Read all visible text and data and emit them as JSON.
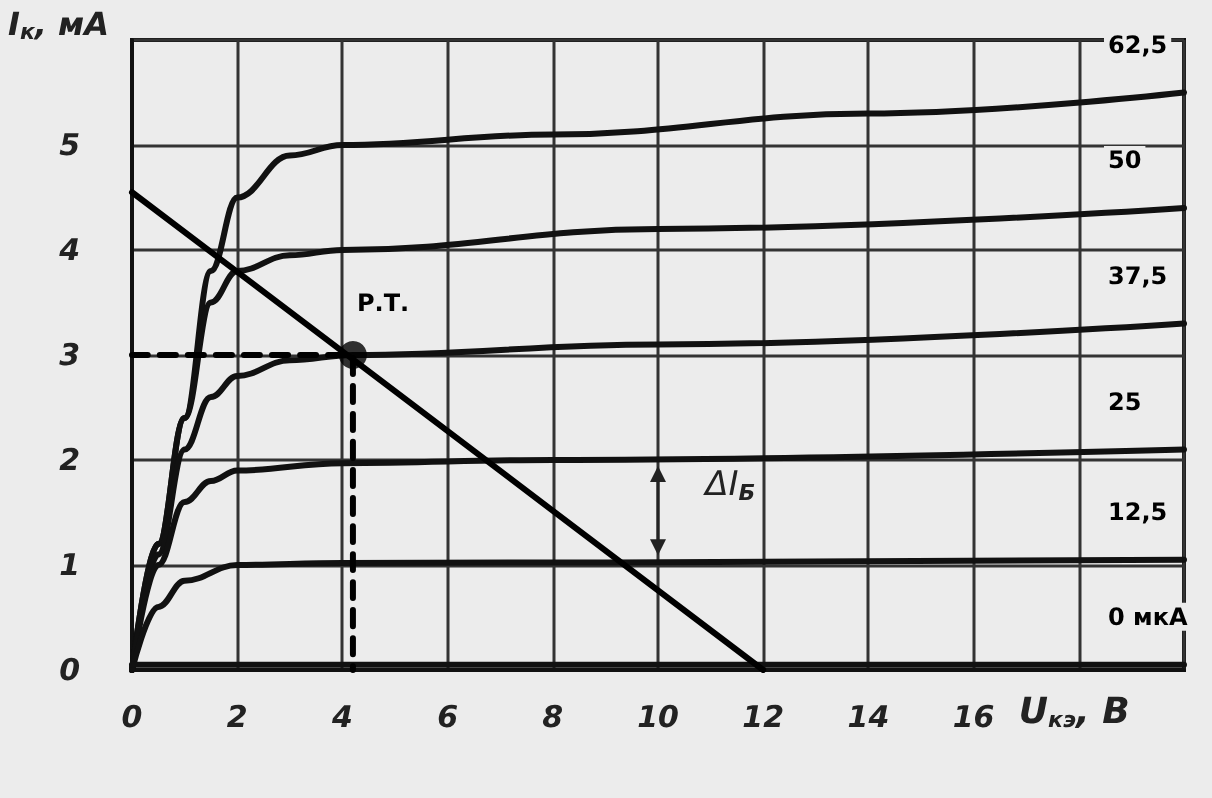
{
  "chart_data": {
    "type": "line",
    "xlabel": "U$_{кэ}$, В",
    "ylabel": "I$_{к}$, мА",
    "xlim": [
      0,
      20
    ],
    "xticks": [
      0,
      2,
      4,
      6,
      8,
      10,
      12,
      14,
      16,
      {
        "value": 18,
        "label": null
      },
      {
        "value": 20,
        "label": null
      }
    ],
    "ylim": [
      0,
      6
    ],
    "yticks": [
      0,
      1,
      2,
      3,
      4,
      5,
      {
        "value": 6,
        "label": null
      }
    ],
    "grid": true,
    "line_style": "solid",
    "series": [
      {
        "name": "62,5",
        "color": "#111111",
        "x": [
          0,
          0.5,
          1,
          1.5,
          2,
          3,
          4,
          8,
          14,
          20
        ],
        "values": [
          0,
          1.2,
          2.4,
          3.8,
          4.5,
          4.9,
          5.0,
          5.1,
          5.3,
          5.5
        ]
      },
      {
        "name": "50",
        "color": "#111111",
        "x": [
          0,
          0.5,
          1,
          1.5,
          2,
          3,
          4,
          10,
          20
        ],
        "values": [
          0,
          1.2,
          2.4,
          3.5,
          3.8,
          3.95,
          4.0,
          4.2,
          4.4
        ]
      },
      {
        "name": "37,5",
        "color": "#111111",
        "x": [
          0,
          0.5,
          1,
          1.5,
          2,
          3,
          4.2,
          10,
          20
        ],
        "values": [
          0,
          1.1,
          2.1,
          2.6,
          2.8,
          2.95,
          3.0,
          3.1,
          3.3
        ]
      },
      {
        "name": "25",
        "color": "#111111",
        "x": [
          0,
          0.5,
          1,
          1.5,
          2,
          4,
          8,
          20
        ],
        "values": [
          0,
          1.0,
          1.6,
          1.8,
          1.9,
          1.97,
          2.0,
          2.1
        ]
      },
      {
        "name": "12,5",
        "color": "#111111",
        "x": [
          0,
          0.5,
          1,
          2,
          4,
          20
        ],
        "values": [
          0,
          0.6,
          0.85,
          1.0,
          1.02,
          1.05
        ]
      },
      {
        "name": "0 мкА",
        "color": "#111111",
        "x": [
          0,
          20
        ],
        "values": [
          0.05,
          0.05
        ]
      },
      {
        "color": "#000000",
        "x": [
          0,
          12
        ],
        "values": [
          4.55,
          0
        ]
      },
      {
        "color": "#000000",
        "line_style": "dashed",
        "x": [
          0,
          4.2,
          4.2
        ],
        "values": [
          3,
          3,
          0
        ]
      },
      {
        "type": "scatter",
        "marker": "circle",
        "color": "#000000",
        "x": [
          4.2
        ],
        "values": [
          3
        ]
      }
    ],
    "annotations": [
      {
        "text": "Р.Т.",
        "x": 4.2,
        "y": 3
      },
      "ΔI$_{Б}$"
    ]
  }
}
